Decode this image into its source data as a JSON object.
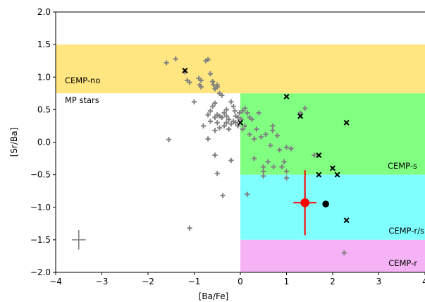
{
  "chart_data": {
    "type": "scatter",
    "title": "",
    "xlabel": "[Ba/Fe]",
    "ylabel": "[Sr/Ba]",
    "xlim": [
      -4,
      4
    ],
    "ylim": [
      -2.0,
      2.0
    ],
    "xticks": [
      -4,
      -3,
      -2,
      -1,
      0,
      1,
      2,
      3,
      4
    ],
    "xtick_labels": [
      "−4",
      "−3",
      "−2",
      "−1",
      "0",
      "1",
      "2",
      "3",
      "4"
    ],
    "yticks": [
      -2.0,
      -1.5,
      -1.0,
      -0.5,
      0.0,
      0.5,
      1.0,
      1.5,
      2.0
    ],
    "ytick_labels": [
      "−2.0",
      "−1.5",
      "−1.0",
      "−0.5",
      "0.0",
      "0.5",
      "1.0",
      "1.5",
      "2.0"
    ],
    "grid": false,
    "regions": [
      {
        "label": "CEMP-no",
        "x_range": [
          -4,
          4
        ],
        "y_range": [
          0.75,
          1.5
        ],
        "color": "#ffe680"
      },
      {
        "label": "MP stars",
        "x_range": [
          -4,
          0
        ],
        "y_range": [
          -2.0,
          0.75
        ],
        "color": "#ffffff"
      },
      {
        "label": "CEMP-s",
        "x_range": [
          0,
          4
        ],
        "y_range": [
          -0.5,
          0.75
        ],
        "color": "#80ff80"
      },
      {
        "label": "CEMP-r/s",
        "x_range": [
          0,
          4
        ],
        "y_range": [
          -1.5,
          -0.5
        ],
        "color": "#80ffff"
      },
      {
        "label": "CEMP-r",
        "x_range": [
          0,
          4
        ],
        "y_range": [
          -2.0,
          -1.5
        ],
        "color": "#f5b3f5"
      }
    ],
    "series": [
      {
        "marker": "plus",
        "color": "#808080",
        "points": [
          [
            -1.6,
            1.22
          ],
          [
            -1.4,
            1.28
          ],
          [
            -1.2,
            1.08
          ],
          [
            -1.15,
            0.95
          ],
          [
            -1.1,
            0.92
          ],
          [
            -1.0,
            0.62
          ],
          [
            -0.9,
            0.98
          ],
          [
            -0.85,
            0.95
          ],
          [
            -0.88,
            0.88
          ],
          [
            -0.85,
            0.85
          ],
          [
            -0.75,
            1.25
          ],
          [
            -0.7,
            1.27
          ],
          [
            -0.65,
            1.05
          ],
          [
            -0.6,
            0.93
          ],
          [
            -0.58,
            0.88
          ],
          [
            -0.55,
            0.82
          ],
          [
            -0.55,
            0.6
          ],
          [
            -0.5,
            0.88
          ],
          [
            -0.5,
            0.85
          ],
          [
            -0.45,
            0.75
          ],
          [
            -0.4,
            0.72
          ],
          [
            -0.6,
            0.55
          ],
          [
            -0.65,
            0.48
          ],
          [
            -0.7,
            0.42
          ],
          [
            -0.5,
            0.42
          ],
          [
            -0.55,
            0.38
          ],
          [
            -0.45,
            0.4
          ],
          [
            -0.4,
            0.38
          ],
          [
            -0.35,
            0.45
          ],
          [
            -0.3,
            0.5
          ],
          [
            -0.3,
            0.4
          ],
          [
            -0.25,
            0.35
          ],
          [
            -0.2,
            0.62
          ],
          [
            -0.15,
            0.55
          ],
          [
            -0.12,
            0.48
          ],
          [
            -0.1,
            0.4
          ],
          [
            -0.05,
            0.38
          ],
          [
            -0.02,
            0.45
          ],
          [
            -0.3,
            0.3
          ],
          [
            -0.35,
            0.25
          ],
          [
            -0.25,
            0.2
          ],
          [
            -0.2,
            0.28
          ],
          [
            -0.15,
            0.32
          ],
          [
            -0.1,
            0.3
          ],
          [
            -0.05,
            0.25
          ],
          [
            0.02,
            0.35
          ],
          [
            0.05,
            0.2
          ],
          [
            0.05,
            0.48
          ],
          [
            0.1,
            0.52
          ],
          [
            0.1,
            0.25
          ],
          [
            0.15,
            0.45
          ],
          [
            0.2,
            0.38
          ],
          [
            -0.8,
            0.25
          ],
          [
            -0.65,
            0.32
          ],
          [
            -0.55,
            0.18
          ],
          [
            -0.7,
            0.05
          ],
          [
            -0.5,
            0.3
          ],
          [
            -0.45,
            0.22
          ],
          [
            -0.55,
            -0.2
          ],
          [
            -0.2,
            -0.28
          ],
          [
            -0.5,
            -0.48
          ],
          [
            -0.38,
            -0.82
          ],
          [
            -1.55,
            0.04
          ],
          [
            -1.1,
            -1.32
          ],
          [
            0.15,
            -0.8
          ],
          [
            0.2,
            0.12
          ],
          [
            0.25,
            0.35
          ],
          [
            0.3,
            0.05
          ],
          [
            0.3,
            -0.25
          ],
          [
            0.35,
            0.2
          ],
          [
            0.4,
            0.45
          ],
          [
            0.45,
            0.08
          ],
          [
            0.5,
            -0.38
          ],
          [
            0.5,
            -0.45
          ],
          [
            0.5,
            -0.52
          ],
          [
            0.55,
            0.12
          ],
          [
            0.6,
            -0.3
          ],
          [
            0.65,
            -0.05
          ],
          [
            0.7,
            0.25
          ],
          [
            0.7,
            0.18
          ],
          [
            0.72,
            -0.38
          ],
          [
            0.8,
            0.1
          ],
          [
            0.85,
            -0.12
          ],
          [
            0.9,
            -0.38
          ],
          [
            0.95,
            -0.3
          ],
          [
            1.0,
            -0.08
          ],
          [
            1.0,
            -0.55
          ],
          [
            1.0,
            -0.45
          ],
          [
            1.1,
            -0.1
          ],
          [
            1.3,
            0.45
          ],
          [
            1.4,
            0.52
          ],
          [
            1.6,
            -0.2
          ],
          [
            2.25,
            -1.7
          ]
        ]
      },
      {
        "marker": "x",
        "color": "#000000",
        "points": [
          [
            -1.2,
            1.1
          ],
          [
            0.0,
            0.3
          ],
          [
            1.0,
            0.7
          ],
          [
            1.3,
            0.4
          ],
          [
            2.3,
            0.3
          ],
          [
            1.7,
            -0.2
          ],
          [
            1.7,
            -0.5
          ],
          [
            2.0,
            -0.4
          ],
          [
            2.1,
            -0.5
          ],
          [
            2.3,
            -1.2
          ]
        ]
      },
      {
        "marker": "circle",
        "color": "#000000",
        "points": [
          [
            1.85,
            -0.95
          ]
        ]
      },
      {
        "marker": "circle-errorbar",
        "color": "#ff0000",
        "points": [
          [
            1.4,
            -0.93
          ]
        ],
        "xerr": 0.25,
        "yerr": 0.5
      }
    ],
    "typical_error": {
      "x": -3.5,
      "y": -1.5,
      "xerr": 0.15,
      "yerr": 0.15,
      "color": "#808080"
    }
  }
}
